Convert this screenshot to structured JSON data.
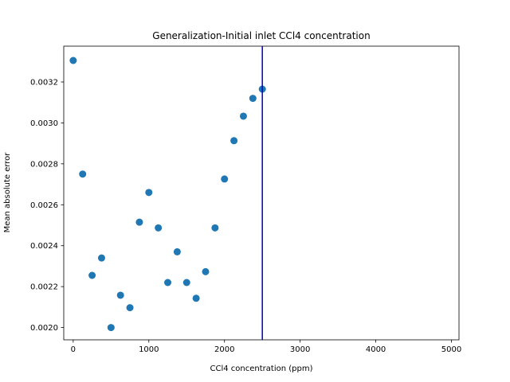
{
  "chart_data": {
    "type": "scatter",
    "title": "Generalization-Initial inlet CCl4 concentration",
    "xlabel": "CCl4 concentration (ppm)",
    "ylabel": "Mean absolute error",
    "xlim": [
      -125,
      5100
    ],
    "ylim": [
      0.00194,
      0.003375
    ],
    "xticks": [
      0,
      1000,
      2000,
      3000,
      4000,
      5000
    ],
    "xtick_labels": [
      "0",
      "1000",
      "2000",
      "3000",
      "4000",
      "5000"
    ],
    "yticks": [
      0.002,
      0.0022,
      0.0024,
      0.0026,
      0.0028,
      0.003,
      0.0032
    ],
    "ytick_labels": [
      "0.0020",
      "0.0022",
      "0.0024",
      "0.0026",
      "0.0028",
      "0.0030",
      "0.0032"
    ],
    "grid": false,
    "marker_color": "#1f77b4",
    "vline": {
      "x": 2500,
      "color": "#0000cc"
    },
    "points": [
      {
        "x": 0,
        "y": 0.003305
      },
      {
        "x": 125,
        "y": 0.00275
      },
      {
        "x": 250,
        "y": 0.002255
      },
      {
        "x": 375,
        "y": 0.00234
      },
      {
        "x": 500,
        "y": 0.002
      },
      {
        "x": 625,
        "y": 0.002158
      },
      {
        "x": 750,
        "y": 0.002097
      },
      {
        "x": 875,
        "y": 0.002515
      },
      {
        "x": 1000,
        "y": 0.00266
      },
      {
        "x": 1125,
        "y": 0.002487
      },
      {
        "x": 1250,
        "y": 0.00222
      },
      {
        "x": 1375,
        "y": 0.00237
      },
      {
        "x": 1500,
        "y": 0.00222
      },
      {
        "x": 1625,
        "y": 0.002143
      },
      {
        "x": 1750,
        "y": 0.002273
      },
      {
        "x": 1875,
        "y": 0.002487
      },
      {
        "x": 2000,
        "y": 0.002726
      },
      {
        "x": 2125,
        "y": 0.002913
      },
      {
        "x": 2250,
        "y": 0.003033
      },
      {
        "x": 2375,
        "y": 0.00312
      },
      {
        "x": 2500,
        "y": 0.003165
      }
    ]
  }
}
